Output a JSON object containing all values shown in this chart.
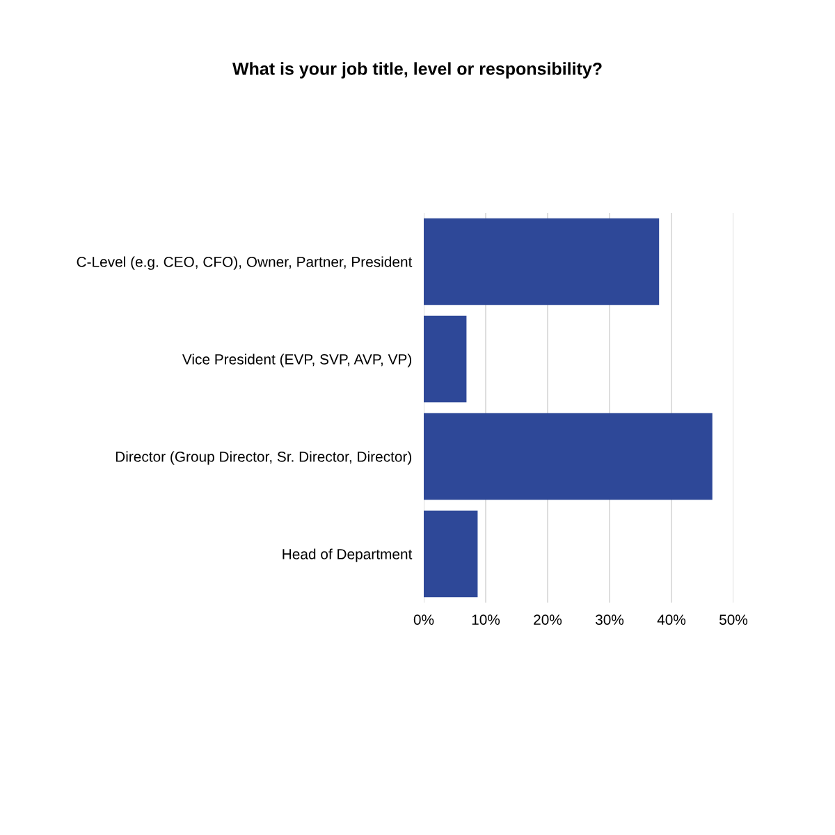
{
  "chart_data": {
    "type": "bar",
    "orientation": "horizontal",
    "title": "What is your job title, level or responsibility?",
    "categories": [
      "C-Level (e.g. CEO, CFO), Owner, Partner, President",
      "Vice President (EVP, SVP, AVP, VP)",
      "Director (Group Director, Sr. Director, Director)",
      "Head of Department"
    ],
    "values": [
      38.0,
      6.9,
      46.6,
      8.7
    ],
    "color": "#2e4898",
    "xlim": [
      0,
      50
    ],
    "xticks": [
      {
        "value": 0,
        "label": "0%"
      },
      {
        "value": 10,
        "label": "10%"
      },
      {
        "value": 20,
        "label": "20%"
      },
      {
        "value": 30,
        "label": "30%"
      },
      {
        "value": 40,
        "label": "40%"
      },
      {
        "value": 50,
        "label": "50%"
      }
    ],
    "grid": "x"
  }
}
